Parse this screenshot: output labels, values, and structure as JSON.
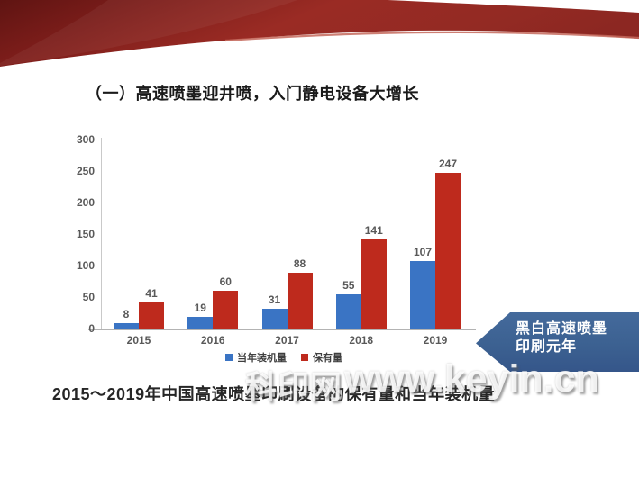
{
  "slide": {
    "title": "（一）高速喷墨迎井喷，入门静电设备大增长",
    "caption": "2015～2019年中国高速喷墨印刷设备的保有量和当年装机量",
    "watermark": {
      "cjk": "科印网",
      "latin": "www.keyin.cn"
    },
    "callout": {
      "line1": "黑白高速喷墨",
      "line2": "印刷元年",
      "color": "#3c6191"
    }
  },
  "colors": {
    "ribbon_red_dark": "#6b1715",
    "ribbon_red_main": "#9a2b24",
    "ribbon_highlight": "#c4695c",
    "series_blue": "#3a74c4",
    "series_red": "#be2a1d",
    "axis_gray": "#b3b3b3",
    "label_gray": "#595959"
  },
  "chart_data": {
    "type": "bar",
    "title": "",
    "xlabel": "",
    "ylabel": "",
    "categories": [
      "2015",
      "2016",
      "2017",
      "2018",
      "2019"
    ],
    "series": [
      {
        "name": "当年装机量",
        "color": "#3a74c4",
        "values": [
          8,
          19,
          31,
          55,
          107
        ]
      },
      {
        "name": "保有量",
        "color": "#be2a1d",
        "values": [
          41,
          60,
          88,
          141,
          247
        ]
      }
    ],
    "ylim": [
      0,
      300
    ],
    "yticks": [
      0,
      50,
      100,
      150,
      200,
      250,
      300
    ],
    "grid": false,
    "data_labels": true,
    "legend_position": "bottom"
  }
}
